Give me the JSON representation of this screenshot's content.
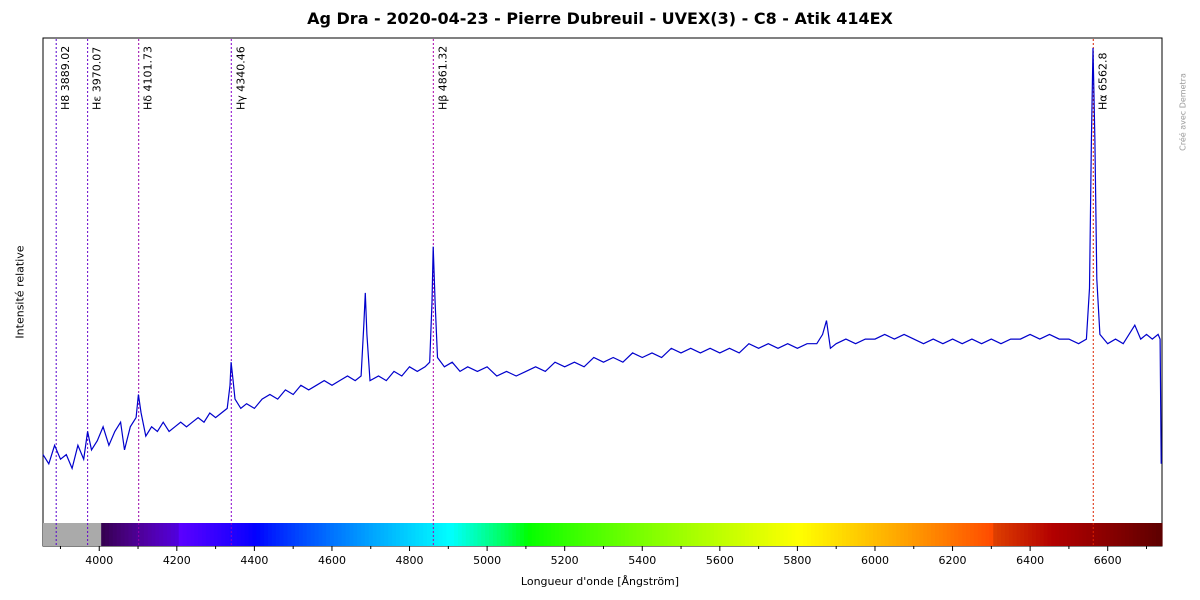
{
  "chart_data": {
    "type": "line",
    "title": "Ag Dra - 2020-04-23 - Pierre Dubreuil - UVEX(3) - C8 - Atik 414EX",
    "xlabel": "Longueur d'onde [Ångström]",
    "ylabel": "Intensité relative",
    "xlim": [
      3855,
      6740
    ],
    "ylim": [
      0,
      1.0
    ],
    "x_ticks": [
      4000,
      4200,
      4400,
      4600,
      4800,
      5000,
      5200,
      5400,
      5600,
      5800,
      6000,
      6200,
      6400,
      6600
    ],
    "grid": false,
    "color_strip": true,
    "series": [
      {
        "color": "#0000cc",
        "points": [
          [
            3855,
            0.12
          ],
          [
            3870,
            0.1
          ],
          [
            3885,
            0.14
          ],
          [
            3900,
            0.11
          ],
          [
            3915,
            0.12
          ],
          [
            3930,
            0.09
          ],
          [
            3945,
            0.14
          ],
          [
            3960,
            0.11
          ],
          [
            3970,
            0.17
          ],
          [
            3980,
            0.13
          ],
          [
            3995,
            0.15
          ],
          [
            4010,
            0.18
          ],
          [
            4025,
            0.14
          ],
          [
            4040,
            0.17
          ],
          [
            4055,
            0.19
          ],
          [
            4065,
            0.13
          ],
          [
            4080,
            0.18
          ],
          [
            4095,
            0.2
          ],
          [
            4101,
            0.25
          ],
          [
            4108,
            0.21
          ],
          [
            4120,
            0.16
          ],
          [
            4135,
            0.18
          ],
          [
            4150,
            0.17
          ],
          [
            4165,
            0.19
          ],
          [
            4180,
            0.17
          ],
          [
            4195,
            0.18
          ],
          [
            4210,
            0.19
          ],
          [
            4225,
            0.18
          ],
          [
            4240,
            0.19
          ],
          [
            4255,
            0.2
          ],
          [
            4270,
            0.19
          ],
          [
            4285,
            0.21
          ],
          [
            4300,
            0.2
          ],
          [
            4315,
            0.21
          ],
          [
            4330,
            0.22
          ],
          [
            4337,
            0.27
          ],
          [
            4340,
            0.32
          ],
          [
            4345,
            0.28
          ],
          [
            4350,
            0.24
          ],
          [
            4365,
            0.22
          ],
          [
            4380,
            0.23
          ],
          [
            4400,
            0.22
          ],
          [
            4420,
            0.24
          ],
          [
            4440,
            0.25
          ],
          [
            4460,
            0.24
          ],
          [
            4480,
            0.26
          ],
          [
            4500,
            0.25
          ],
          [
            4520,
            0.27
          ],
          [
            4540,
            0.26
          ],
          [
            4560,
            0.27
          ],
          [
            4580,
            0.28
          ],
          [
            4600,
            0.27
          ],
          [
            4620,
            0.28
          ],
          [
            4640,
            0.29
          ],
          [
            4660,
            0.28
          ],
          [
            4675,
            0.29
          ],
          [
            4682,
            0.4
          ],
          [
            4686,
            0.47
          ],
          [
            4690,
            0.38
          ],
          [
            4698,
            0.28
          ],
          [
            4720,
            0.29
          ],
          [
            4740,
            0.28
          ],
          [
            4760,
            0.3
          ],
          [
            4780,
            0.29
          ],
          [
            4800,
            0.31
          ],
          [
            4820,
            0.3
          ],
          [
            4840,
            0.31
          ],
          [
            4852,
            0.32
          ],
          [
            4858,
            0.45
          ],
          [
            4861,
            0.57
          ],
          [
            4866,
            0.45
          ],
          [
            4872,
            0.33
          ],
          [
            4890,
            0.31
          ],
          [
            4910,
            0.32
          ],
          [
            4930,
            0.3
          ],
          [
            4950,
            0.31
          ],
          [
            4975,
            0.3
          ],
          [
            5000,
            0.31
          ],
          [
            5025,
            0.29
          ],
          [
            5050,
            0.3
          ],
          [
            5075,
            0.29
          ],
          [
            5100,
            0.3
          ],
          [
            5125,
            0.31
          ],
          [
            5150,
            0.3
          ],
          [
            5175,
            0.32
          ],
          [
            5200,
            0.31
          ],
          [
            5225,
            0.32
          ],
          [
            5250,
            0.31
          ],
          [
            5275,
            0.33
          ],
          [
            5300,
            0.32
          ],
          [
            5325,
            0.33
          ],
          [
            5350,
            0.32
          ],
          [
            5375,
            0.34
          ],
          [
            5400,
            0.33
          ],
          [
            5425,
            0.34
          ],
          [
            5450,
            0.33
          ],
          [
            5475,
            0.35
          ],
          [
            5500,
            0.34
          ],
          [
            5525,
            0.35
          ],
          [
            5550,
            0.34
          ],
          [
            5575,
            0.35
          ],
          [
            5600,
            0.34
          ],
          [
            5625,
            0.35
          ],
          [
            5650,
            0.34
          ],
          [
            5675,
            0.36
          ],
          [
            5700,
            0.35
          ],
          [
            5725,
            0.36
          ],
          [
            5750,
            0.35
          ],
          [
            5775,
            0.36
          ],
          [
            5800,
            0.35
          ],
          [
            5825,
            0.36
          ],
          [
            5850,
            0.36
          ],
          [
            5865,
            0.38
          ],
          [
            5875,
            0.41
          ],
          [
            5885,
            0.35
          ],
          [
            5900,
            0.36
          ],
          [
            5925,
            0.37
          ],
          [
            5950,
            0.36
          ],
          [
            5975,
            0.37
          ],
          [
            6000,
            0.37
          ],
          [
            6025,
            0.38
          ],
          [
            6050,
            0.37
          ],
          [
            6075,
            0.38
          ],
          [
            6100,
            0.37
          ],
          [
            6125,
            0.36
          ],
          [
            6150,
            0.37
          ],
          [
            6175,
            0.36
          ],
          [
            6200,
            0.37
          ],
          [
            6225,
            0.36
          ],
          [
            6250,
            0.37
          ],
          [
            6275,
            0.36
          ],
          [
            6300,
            0.37
          ],
          [
            6325,
            0.36
          ],
          [
            6350,
            0.37
          ],
          [
            6375,
            0.37
          ],
          [
            6400,
            0.38
          ],
          [
            6425,
            0.37
          ],
          [
            6450,
            0.38
          ],
          [
            6475,
            0.37
          ],
          [
            6500,
            0.37
          ],
          [
            6525,
            0.36
          ],
          [
            6545,
            0.37
          ],
          [
            6553,
            0.48
          ],
          [
            6558,
            0.8
          ],
          [
            6562,
            1.0
          ],
          [
            6567,
            0.8
          ],
          [
            6572,
            0.5
          ],
          [
            6580,
            0.38
          ],
          [
            6600,
            0.36
          ],
          [
            6620,
            0.37
          ],
          [
            6640,
            0.36
          ],
          [
            6655,
            0.38
          ],
          [
            6670,
            0.4
          ],
          [
            6685,
            0.37
          ],
          [
            6700,
            0.38
          ],
          [
            6715,
            0.37
          ],
          [
            6730,
            0.38
          ],
          [
            6735,
            0.37
          ],
          [
            6738,
            0.1
          ]
        ]
      }
    ],
    "annotations": [
      {
        "label": "H8",
        "value": "3889.02",
        "x": 3889.02,
        "color": "#5500cc"
      },
      {
        "label": "Hε",
        "value": "3970.07",
        "x": 3970.07,
        "color": "#6600cc"
      },
      {
        "label": "Hδ",
        "value": "4101.73",
        "x": 4101.73,
        "color": "#9900aa"
      },
      {
        "label": "Hγ",
        "value": "4340.46",
        "x": 4340.46,
        "color": "#8800cc"
      },
      {
        "label": "Hβ",
        "value": "4861.32",
        "x": 4861.32,
        "color": "#aa00aa"
      },
      {
        "label": "Hα",
        "value": "6562.8",
        "x": 6562.8,
        "color": "#dd2200"
      }
    ]
  },
  "watermark": "Créé avec Demetra"
}
